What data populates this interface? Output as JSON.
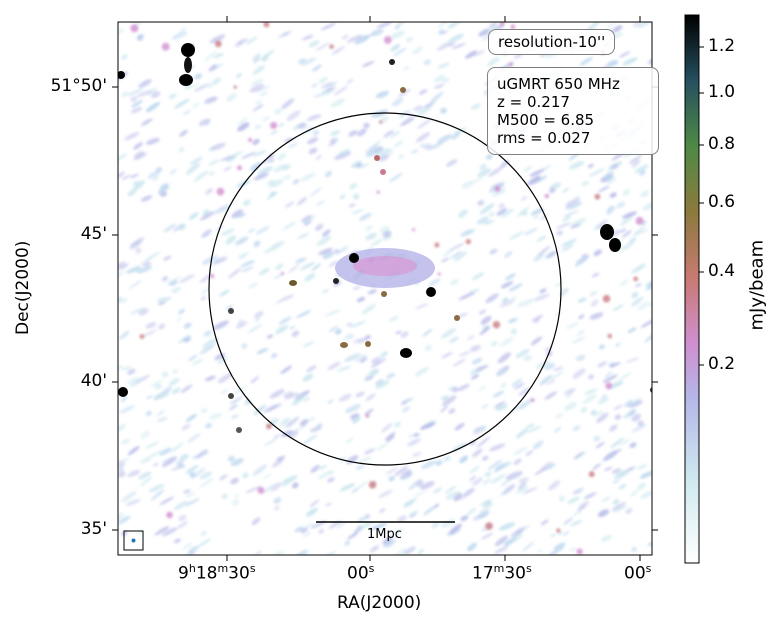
{
  "resolution_label": "resolution-10''",
  "info": {
    "telescope": "uGMRT 650 MHz",
    "redshift": "z = 0.217",
    "mass": "M500 = 6.85",
    "rms": "rms = 0.027"
  },
  "scalebar_label": "1Mpc",
  "axes": {
    "xlabel": "RA(J2000)",
    "ylabel": "Dec(J2000)",
    "x_ticks": [
      {
        "h": "9",
        "m": "18",
        "s": "30"
      },
      {
        "s": "00"
      },
      {
        "m": "17",
        "s": "30"
      },
      {
        "s": "00"
      }
    ],
    "y_ticks": [
      "51°50'",
      "45'",
      "40'",
      "35'"
    ]
  },
  "colorbar": {
    "label": "mJy/beam",
    "ticks": [
      "1.2",
      "1.0",
      "0.8",
      "0.6",
      "0.4",
      "0.2"
    ]
  },
  "colors": {
    "circle": "#000000",
    "beam": "#1f77b4"
  }
}
